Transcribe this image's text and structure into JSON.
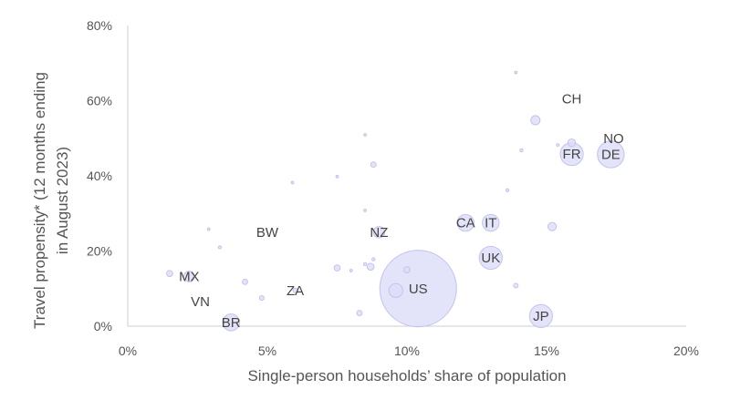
{
  "chart_data": {
    "type": "scatter",
    "title": "",
    "xlabel": "Single-person households’ share of population",
    "ylabel": "Travel propensity* (12 months ending in August 2023)",
    "ylabel_lines": [
      "Travel propensity* (12 months ending",
      "in August 2023)"
    ],
    "xlim": [
      0,
      20
    ],
    "ylim": [
      0,
      80
    ],
    "x_ticks": [
      0,
      5,
      10,
      15,
      20
    ],
    "y_ticks": [
      0,
      20,
      40,
      60,
      80
    ],
    "x_tick_labels": [
      "0%",
      "5%",
      "10%",
      "15%",
      "20%"
    ],
    "y_tick_labels": [
      "0%",
      "20%",
      "40%",
      "60%",
      "80%"
    ],
    "grid": false,
    "colors": {
      "bubble_fill": "#dcdcf7",
      "bubble_stroke": "#c3c3ee",
      "text": "#555555"
    },
    "points": [
      {
        "label": "CH",
        "x": 15.9,
        "y": 60.5,
        "size": 0
      },
      {
        "label": "NO",
        "x": 17.4,
        "y": 50.0,
        "size": 0
      },
      {
        "label": "FR",
        "x": 15.9,
        "y": 45.8,
        "size": 3
      },
      {
        "label": "DE",
        "x": 17.3,
        "y": 45.7,
        "size": 3.5
      },
      {
        "label": "NZ",
        "x": 9.0,
        "y": 25.0,
        "size": 1.5
      },
      {
        "label": "CA",
        "x": 12.1,
        "y": 27.5,
        "size": 2.2
      },
      {
        "label": "IT",
        "x": 13.0,
        "y": 27.5,
        "size": 2.2
      },
      {
        "label": "UK",
        "x": 13.0,
        "y": 18.2,
        "size": 3
      },
      {
        "label": "US",
        "x": 10.4,
        "y": 10.0,
        "size": 10
      },
      {
        "label": "JP",
        "x": 14.8,
        "y": 2.7,
        "size": 3
      },
      {
        "label": "BW",
        "x": 5.0,
        "y": 25.0,
        "size": 0
      },
      {
        "label": "MX",
        "x": 2.2,
        "y": 13.2,
        "size": 1.4
      },
      {
        "label": "ZA",
        "x": 6.0,
        "y": 9.5,
        "size": 0.6
      },
      {
        "label": "VN",
        "x": 2.6,
        "y": 6.5,
        "size": 0
      },
      {
        "label": "BR",
        "x": 3.7,
        "y": 1.0,
        "size": 2.2
      },
      {
        "label": "",
        "x": 13.9,
        "y": 67.5,
        "size": 0.3
      },
      {
        "label": "",
        "x": 14.6,
        "y": 54.8,
        "size": 1.2
      },
      {
        "label": "",
        "x": 15.9,
        "y": 48.8,
        "size": 1.0
      },
      {
        "label": "",
        "x": 15.4,
        "y": 48.2,
        "size": 0.3
      },
      {
        "label": "",
        "x": 14.1,
        "y": 46.8,
        "size": 0.4
      },
      {
        "label": "",
        "x": 8.5,
        "y": 50.9,
        "size": 0.3
      },
      {
        "label": "",
        "x": 8.8,
        "y": 43.0,
        "size": 0.7
      },
      {
        "label": "",
        "x": 7.5,
        "y": 39.8,
        "size": 0.3
      },
      {
        "label": "",
        "x": 5.9,
        "y": 38.2,
        "size": 0.2
      },
      {
        "label": "",
        "x": 13.6,
        "y": 36.2,
        "size": 0.4
      },
      {
        "label": "",
        "x": 8.5,
        "y": 30.8,
        "size": 0.3
      },
      {
        "label": "",
        "x": 15.2,
        "y": 26.5,
        "size": 1.1
      },
      {
        "label": "",
        "x": 2.9,
        "y": 25.8,
        "size": 0.3
      },
      {
        "label": "",
        "x": 3.3,
        "y": 21.0,
        "size": 0.4
      },
      {
        "label": "",
        "x": 8.8,
        "y": 17.8,
        "size": 0.4
      },
      {
        "label": "",
        "x": 8.5,
        "y": 16.5,
        "size": 0.4
      },
      {
        "label": "",
        "x": 8.7,
        "y": 15.8,
        "size": 0.9
      },
      {
        "label": "",
        "x": 7.5,
        "y": 15.5,
        "size": 0.8
      },
      {
        "label": "",
        "x": 8.0,
        "y": 14.8,
        "size": 0.3
      },
      {
        "label": "",
        "x": 10.0,
        "y": 15.0,
        "size": 0.8
      },
      {
        "label": "",
        "x": 1.5,
        "y": 14.0,
        "size": 0.8
      },
      {
        "label": "",
        "x": 4.2,
        "y": 11.8,
        "size": 0.7
      },
      {
        "label": "",
        "x": 13.9,
        "y": 10.8,
        "size": 0.6
      },
      {
        "label": "",
        "x": 9.6,
        "y": 9.5,
        "size": 1.8
      },
      {
        "label": "",
        "x": 4.8,
        "y": 7.5,
        "size": 0.6
      },
      {
        "label": "",
        "x": 8.3,
        "y": 3.5,
        "size": 0.7
      }
    ]
  }
}
